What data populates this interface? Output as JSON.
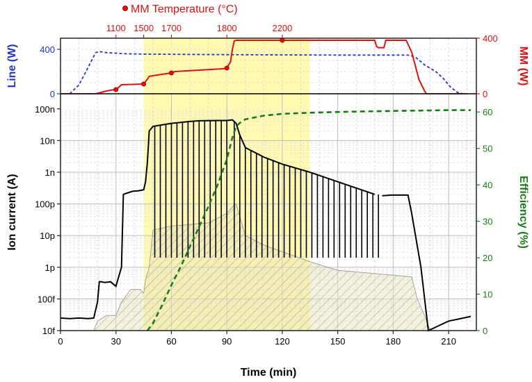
{
  "colors": {
    "line_power": "#2233cc",
    "mm_power": "#dd1111",
    "efficiency": "#1a7a1a",
    "ion_current": "#000000",
    "highlight": "#fffab0",
    "hatch_fill": "#e6e2b8"
  },
  "chart_data": [
    {
      "type": "line",
      "panel": "top",
      "top_axis": {
        "title": "MM Temperature (°C)",
        "ticks": [
          {
            "label": "1100",
            "time": 30
          },
          {
            "label": "1500",
            "time": 45
          },
          {
            "label": "1700",
            "time": 60
          },
          {
            "label": "1800",
            "time": 90
          },
          {
            "label": "2200",
            "time": 120
          }
        ]
      },
      "xlim": [
        0,
        225
      ],
      "left_axis": {
        "title": "Line (W)",
        "ylim": [
          0,
          500
        ],
        "ticks": [
          "0",
          "400"
        ]
      },
      "right_axis": {
        "title": "MM (W)",
        "ylim": [
          0,
          400
        ],
        "ticks": [
          "0",
          "400"
        ]
      },
      "series": [
        {
          "axis": "left",
          "style": "dashed",
          "x": [
            5,
            10,
            15,
            19,
            21,
            25,
            35,
            45,
            60,
            90,
            120,
            150,
            170,
            185,
            189,
            192,
            197,
            203,
            207,
            211,
            215,
            218
          ],
          "y": [
            0,
            80,
            240,
            370,
            380,
            370,
            360,
            357,
            355,
            352,
            350,
            348,
            348,
            348,
            347,
            330,
            260,
            200,
            140,
            60,
            10,
            0
          ]
        },
        {
          "axis": "right",
          "x": [
            0,
            19,
            22,
            25,
            29,
            31,
            33,
            45,
            47,
            48,
            50,
            60,
            62,
            88,
            90,
            92,
            93,
            94,
            95,
            110,
            120,
            150,
            170,
            171,
            172,
            175,
            176,
            185,
            187,
            190,
            194,
            197,
            198,
            220
          ],
          "y": [
            0,
            0,
            10,
            20,
            30,
            40,
            65,
            70,
            105,
            125,
            130,
            150,
            160,
            180,
            185,
            230,
            320,
            380,
            385,
            385,
            385,
            385,
            385,
            340,
            332,
            332,
            385,
            385,
            385,
            300,
            100,
            20,
            0,
            0
          ]
        }
      ],
      "markers": [
        {
          "series": "MM",
          "time": 30,
          "value": 30
        },
        {
          "series": "MM",
          "time": 45,
          "value": 70
        },
        {
          "series": "MM",
          "time": 60,
          "value": 150
        },
        {
          "series": "MM",
          "time": 90,
          "value": 185
        },
        {
          "series": "MM",
          "time": 120,
          "value": 385
        }
      ]
    },
    {
      "type": "line",
      "panel": "bottom",
      "xlabel": "Time (min)",
      "xlim": [
        0,
        225
      ],
      "xticks": [
        "0",
        "30",
        "60",
        "90",
        "120",
        "150",
        "180",
        "210"
      ],
      "ylabel_left": "Ion current (A)",
      "ylabel_right": "Efficiency (%)",
      "left_scale": "log",
      "left_ylim": [
        1e-14,
        3e-07
      ],
      "left_ticks": [
        "10f",
        "100f",
        "1p",
        "10p",
        "100p",
        "1n",
        "10n",
        "100n"
      ],
      "right_ylim": [
        0,
        65
      ],
      "right_ticks": [
        "0",
        "10",
        "20",
        "30",
        "40",
        "50",
        "60"
      ],
      "highlight_region": {
        "x_start": 45,
        "x_end": 135
      },
      "ion_current_trace": {
        "x": [
          0,
          5,
          10,
          15,
          18,
          20,
          21,
          22,
          24,
          27,
          30,
          31,
          33,
          34,
          36,
          39,
          42,
          45,
          46,
          47,
          48,
          50,
          53,
          60,
          70,
          75,
          85,
          90,
          93,
          95,
          97,
          100,
          110,
          120,
          135,
          150,
          170
        ],
        "y": [
          2.5e-14,
          2.4e-14,
          2.5e-14,
          2.4e-14,
          2.5e-14,
          8e-14,
          3.5e-13,
          3.5e-13,
          3.3e-13,
          3.5e-13,
          2.5e-13,
          4e-13,
          1e-12,
          2e-10,
          2.2e-10,
          2.5e-10,
          2.6e-10,
          2.8e-10,
          5e-10,
          2e-09,
          2e-08,
          2.8e-08,
          3e-08,
          3.5e-08,
          4e-08,
          4.2e-08,
          4.3e-08,
          4.3e-08,
          4.5e-08,
          3.5e-08,
          1.5e-08,
          6e-09,
          3e-09,
          1.8e-09,
          1e-09,
          5e-10,
          2e-10
        ]
      },
      "ion_current_plateau": {
        "x": [
          174,
          179,
          188,
          190,
          195,
          199,
          210,
          218,
          222
        ],
        "y": [
          1.8e-10,
          1.9e-10,
          1.9e-10,
          5e-11,
          1e-12,
          1e-14,
          2e-14,
          2.5e-14,
          2.8e-14
        ]
      },
      "ion_current_dips": {
        "times": [
          51,
          54,
          57,
          60,
          63,
          66,
          69,
          72,
          75,
          78,
          81,
          84,
          87,
          90,
          94,
          97,
          100,
          103,
          106,
          109,
          112,
          115,
          118,
          121,
          124,
          127,
          130,
          133,
          136,
          139,
          142,
          145,
          148,
          151,
          154,
          157,
          160,
          163,
          166,
          169,
          172
        ],
        "minimum": 2e-12
      },
      "baseline_trace": {
        "x": [
          0,
          18,
          20,
          25,
          30,
          33,
          38,
          43,
          45,
          46,
          48,
          50,
          60,
          80,
          90,
          93,
          95,
          97,
          100,
          110,
          135,
          150,
          190,
          193,
          197,
          200,
          225
        ],
        "y": [
          1e-14,
          1e-14,
          2e-14,
          3e-14,
          3e-14,
          8e-14,
          2e-13,
          2e-13,
          1.5e-13,
          4e-13,
          1e-12,
          1.5e-11,
          2e-11,
          2.5e-11,
          5e-11,
          8e-11,
          1e-10,
          4e-11,
          1e-11,
          5e-12,
          1.5e-12,
          8e-13,
          5e-13,
          1e-13,
          3e-14,
          1e-14,
          1e-14
        ]
      },
      "efficiency_series": {
        "x": [
          47,
          50,
          55,
          60,
          65,
          70,
          75,
          80,
          85,
          90,
          93,
          95,
          97,
          100,
          110,
          120,
          135,
          150,
          180,
          210,
          222
        ],
        "y": [
          0,
          2,
          7,
          12.5,
          17.5,
          23,
          28.5,
          34,
          40,
          47,
          53,
          56,
          57,
          58,
          59,
          59.5,
          59.8,
          60,
          60.3,
          60.5,
          60.5
        ]
      }
    }
  ]
}
